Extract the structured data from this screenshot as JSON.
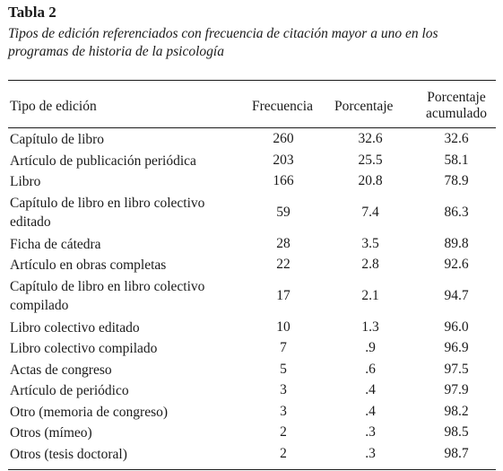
{
  "table": {
    "label": "Tabla 2",
    "caption": "Tipos de edición referenciados con frecuencia de citación mayor a uno en los programas de historia de la psicología",
    "headers": {
      "tipo": "Tipo de edición",
      "frecuencia": "Frecuencia",
      "porcentaje": "Porcentaje",
      "acumulado": "Porcentaje acumulado"
    },
    "rows": [
      {
        "tipo": "Capítulo de libro",
        "frecuencia": "260",
        "porcentaje": "32.6",
        "acumulado": "32.6"
      },
      {
        "tipo": "Artículo de publicación periódica",
        "frecuencia": "203",
        "porcentaje": "25.5",
        "acumulado": "58.1"
      },
      {
        "tipo": "Libro",
        "frecuencia": "166",
        "porcentaje": "20.8",
        "acumulado": "78.9"
      },
      {
        "tipo": "Capítulo de libro en libro colectivo editado",
        "frecuencia": "59",
        "porcentaje": "7.4",
        "acumulado": "86.3"
      },
      {
        "tipo": "Ficha de cátedra",
        "frecuencia": "28",
        "porcentaje": "3.5",
        "acumulado": "89.8"
      },
      {
        "tipo": "Artículo en obras completas",
        "frecuencia": "22",
        "porcentaje": "2.8",
        "acumulado": "92.6"
      },
      {
        "tipo": "Capítulo de libro en libro colectivo compilado",
        "frecuencia": "17",
        "porcentaje": "2.1",
        "acumulado": "94.7"
      },
      {
        "tipo": "Libro colectivo editado",
        "frecuencia": "10",
        "porcentaje": "1.3",
        "acumulado": "96.0"
      },
      {
        "tipo": "Libro colectivo compilado",
        "frecuencia": "7",
        "porcentaje": ".9",
        "acumulado": "96.9"
      },
      {
        "tipo": "Actas de congreso",
        "frecuencia": "5",
        "porcentaje": ".6",
        "acumulado": "97.5"
      },
      {
        "tipo": "Artículo de periódico",
        "frecuencia": "3",
        "porcentaje": ".4",
        "acumulado": "97.9"
      },
      {
        "tipo": "Otro (memoria de congreso)",
        "frecuencia": "3",
        "porcentaje": ".4",
        "acumulado": "98.2"
      },
      {
        "tipo": "Otros (mímeo)",
        "frecuencia": "2",
        "porcentaje": ".3",
        "acumulado": "98.5"
      },
      {
        "tipo": "Otros (tesis doctoral)",
        "frecuencia": "2",
        "porcentaje": ".3",
        "acumulado": "98.7"
      }
    ]
  }
}
